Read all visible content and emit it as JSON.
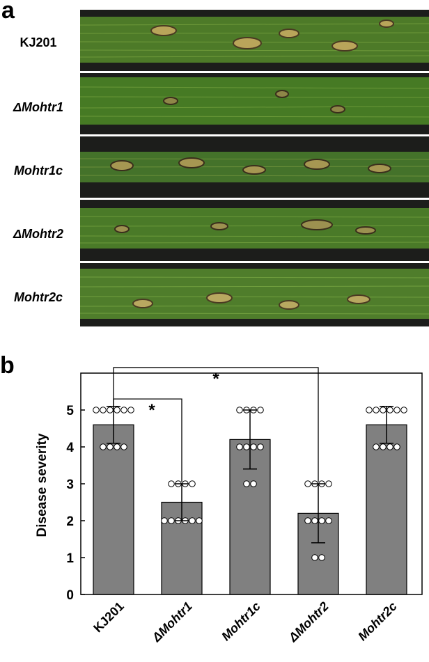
{
  "panel_a": {
    "letter": "a",
    "leaves": [
      {
        "label": "KJ201",
        "italic": false
      },
      {
        "label": "ΔMohtr1",
        "italic": true
      },
      {
        "label": "Mohtr1c",
        "italic": true
      },
      {
        "label": "ΔMohtr2",
        "italic": true
      },
      {
        "label": "Mohtr2c",
        "italic": true
      }
    ]
  },
  "panel_b": {
    "letter": "b"
  },
  "chart_data": {
    "type": "bar",
    "title": "",
    "xlabel": "",
    "ylabel": "Disease severity",
    "ylim": [
      0,
      6
    ],
    "yticks": [
      0,
      1,
      2,
      3,
      4,
      5
    ],
    "categories": [
      "KJ201",
      "ΔMohtr1",
      "Mohtr1c",
      "ΔMohtr2",
      "Mohtr2c"
    ],
    "values": [
      4.6,
      2.5,
      4.2,
      2.2,
      4.6
    ],
    "errors": [
      0.5,
      0.5,
      0.8,
      0.8,
      0.5
    ],
    "points": [
      [
        5,
        5,
        5,
        5,
        5,
        5,
        4,
        4,
        4,
        4
      ],
      [
        3,
        3,
        3,
        3,
        2,
        2,
        2,
        2,
        2,
        2
      ],
      [
        5,
        5,
        5,
        5,
        4,
        4,
        4,
        4,
        3,
        3
      ],
      [
        3,
        3,
        3,
        3,
        2,
        2,
        2,
        2,
        1,
        1
      ],
      [
        5,
        5,
        5,
        5,
        5,
        5,
        4,
        4,
        4,
        4
      ]
    ],
    "significance": [
      {
        "from": "KJ201",
        "to": "ΔMohtr1",
        "label": "*"
      },
      {
        "from": "KJ201",
        "to": "ΔMohtr2",
        "label": "*"
      }
    ],
    "colors": {
      "bar": "#808080",
      "edge": "#000000",
      "point_fill": "#ffffff"
    }
  }
}
